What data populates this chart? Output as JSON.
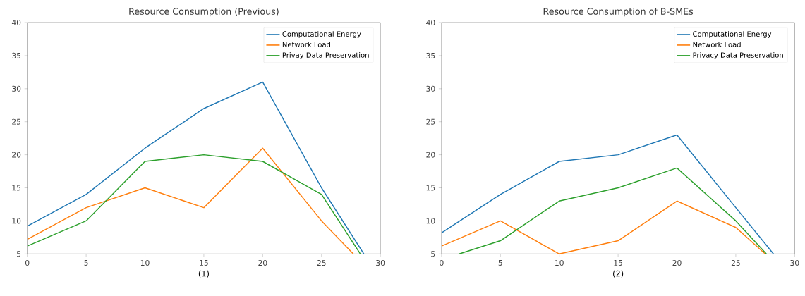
{
  "chart_data": [
    {
      "type": "line",
      "title": "Resource Consumption (Previous)",
      "xlabel": "(1)",
      "xlim": [
        0,
        30
      ],
      "ylim": [
        5,
        40
      ],
      "xticks": [
        0,
        5,
        10,
        15,
        20,
        25,
        30
      ],
      "yticks": [
        5,
        10,
        15,
        20,
        25,
        30,
        35,
        40
      ],
      "legend": "top right",
      "series": [
        {
          "name": "Computational Energy",
          "color": "#1f77b4",
          "x": [
            0,
            5,
            10,
            15,
            20,
            25,
            28.6
          ],
          "values": [
            9.2,
            14,
            21,
            27,
            31,
            15,
            5
          ]
        },
        {
          "name": "Network Load",
          "color": "#ff7f0e",
          "x": [
            0,
            5,
            10,
            15,
            20,
            25,
            27.7
          ],
          "values": [
            7.2,
            12,
            15,
            12,
            21,
            10,
            5
          ]
        },
        {
          "name": "Privay Data Preservation",
          "color": "#2ca02c",
          "x": [
            0,
            5,
            10,
            15,
            20,
            25,
            28.3
          ],
          "values": [
            6.2,
            10,
            19,
            20,
            19,
            14,
            5
          ]
        }
      ]
    },
    {
      "type": "line",
      "title": "Resource Consumption of B-SMEs",
      "xlabel": "(2)",
      "xlim": [
        0,
        30
      ],
      "ylim": [
        5,
        40
      ],
      "xticks": [
        0,
        5,
        10,
        15,
        20,
        25,
        30
      ],
      "yticks": [
        5,
        10,
        15,
        20,
        25,
        30,
        35,
        40
      ],
      "legend": "top right",
      "series": [
        {
          "name": "Computational Energy",
          "color": "#1f77b4",
          "x": [
            0,
            5,
            10,
            15,
            20,
            25,
            28.2
          ],
          "values": [
            8.2,
            14,
            19,
            20,
            23,
            12,
            5
          ]
        },
        {
          "name": "Network Load",
          "color": "#ff7f0e",
          "x": [
            0,
            5,
            10,
            15,
            20,
            25,
            27.5
          ],
          "values": [
            6.2,
            10,
            5,
            7,
            13,
            9,
            5
          ]
        },
        {
          "name": "Privacy Data Preservation",
          "color": "#2ca02c",
          "x": [
            1.5,
            5,
            10,
            15,
            20,
            25,
            27.6
          ],
          "values": [
            5,
            7,
            13,
            15,
            18,
            10,
            5
          ]
        }
      ]
    }
  ]
}
